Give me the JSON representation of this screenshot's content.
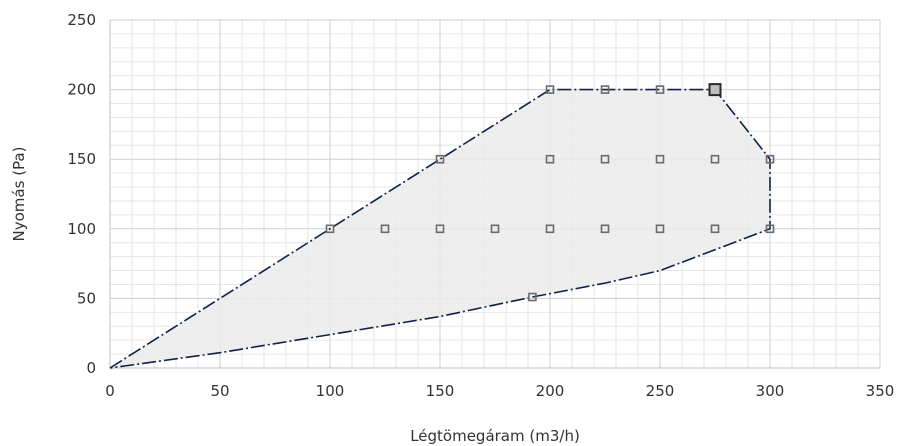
{
  "chart_data": {
    "type": "scatter",
    "title": "",
    "xlabel": "Légtömegáram (m3/h)",
    "ylabel": "Nyomás (Pa)",
    "xlim": [
      0,
      350
    ],
    "ylim": [
      0,
      250
    ],
    "x_ticks": [
      0,
      50,
      100,
      150,
      200,
      250,
      300,
      350
    ],
    "y_ticks": [
      0,
      50,
      100,
      150,
      200,
      250
    ],
    "x_minor_step": 10,
    "y_minor_step": 10,
    "grid": true,
    "legend": "none",
    "colors": {
      "envelope_line": "#0d2345",
      "envelope_fill": "#ebebeb",
      "marker": "#6b6b6b"
    },
    "envelope": {
      "upper": [
        [
          0,
          0
        ],
        [
          100,
          100
        ],
        [
          150,
          150
        ],
        [
          200,
          200
        ],
        [
          225,
          200
        ],
        [
          250,
          200
        ],
        [
          275,
          200
        ],
        [
          300,
          150
        ],
        [
          300,
          100
        ]
      ],
      "lower": [
        [
          300,
          100
        ],
        [
          275,
          85
        ],
        [
          250,
          70
        ],
        [
          225,
          61
        ],
        [
          192,
          51
        ],
        [
          150,
          37
        ],
        [
          100,
          24
        ],
        [
          50,
          11
        ],
        [
          0,
          0
        ]
      ]
    },
    "points": [
      [
        100,
        100
      ],
      [
        125,
        100
      ],
      [
        150,
        100
      ],
      [
        175,
        100
      ],
      [
        200,
        100
      ],
      [
        225,
        100
      ],
      [
        250,
        100
      ],
      [
        275,
        100
      ],
      [
        300,
        100
      ],
      [
        150,
        150
      ],
      [
        200,
        150
      ],
      [
        225,
        150
      ],
      [
        250,
        150
      ],
      [
        275,
        150
      ],
      [
        300,
        150
      ],
      [
        200,
        200
      ],
      [
        225,
        200
      ],
      [
        250,
        200
      ],
      [
        275,
        200
      ],
      [
        192,
        51
      ]
    ],
    "highlighted_point": [
      275,
      200
    ]
  }
}
